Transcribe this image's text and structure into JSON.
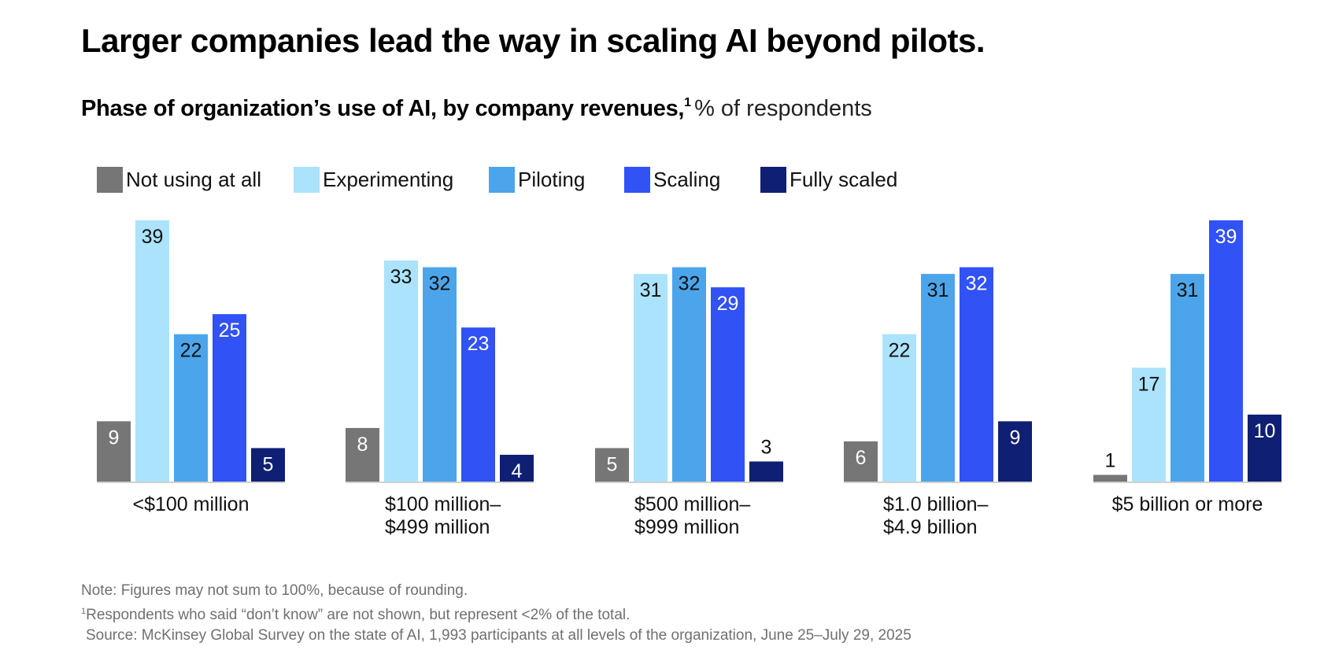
{
  "title": "Larger companies lead the way in scaling AI beyond pilots.",
  "subtitle": {
    "bold": "Phase of organization’s use of AI, by company revenues,",
    "footnote_marker": "1",
    "light": "% of respondents"
  },
  "footnotes": {
    "note": "Note: Figures may not sum to 100%, because of rounding.",
    "fn1_marker": "1",
    "fn1": "Respondents who said “don’t know” are not shown, but represent <2% of the total.",
    "source": "Source: McKinsey Global Survey on the state of AI, 1,993 participants at all levels of the organization, June 25–July 29, 2025"
  },
  "chart_data": {
    "type": "bar",
    "title": "Phase of organization’s use of AI, by company revenues",
    "ylabel": "% of respondents",
    "xlabel": "",
    "ylim": [
      0,
      39
    ],
    "grid": false,
    "legend_position": "top-left",
    "categories": [
      [
        "<$100 million"
      ],
      [
        "$100 million–",
        "$499 million"
      ],
      [
        "$500 million–",
        "$999 million"
      ],
      [
        "$1.0 billion–",
        "$4.9 billion"
      ],
      [
        "$5 billion or more"
      ]
    ],
    "series": [
      {
        "name": "Not using at all",
        "color": "#767676",
        "label_color_inside": "#ffffff",
        "values": [
          9,
          8,
          5,
          6,
          1
        ]
      },
      {
        "name": "Experimenting",
        "color": "#aae3fb",
        "label_color_inside": "#111111",
        "values": [
          39,
          33,
          31,
          22,
          17
        ]
      },
      {
        "name": "Piloting",
        "color": "#4ca5ea",
        "label_color_inside": "#111111",
        "values": [
          22,
          32,
          32,
          31,
          31
        ]
      },
      {
        "name": "Scaling",
        "color": "#3152f5",
        "label_color_inside": "#ffffff",
        "values": [
          25,
          23,
          29,
          32,
          39
        ]
      },
      {
        "name": "Fully scaled",
        "color": "#0f1f73",
        "label_color_inside": "#ffffff",
        "values": [
          5,
          4,
          3,
          9,
          10
        ]
      }
    ],
    "baseline_color": "#d0d0d0"
  }
}
